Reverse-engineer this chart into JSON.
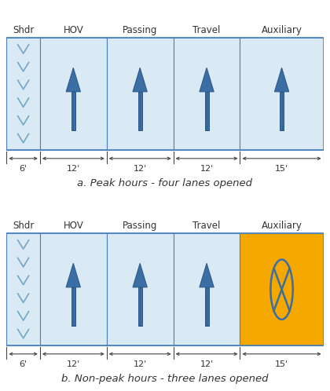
{
  "title_a": "a. Peak hours - four lanes opened",
  "title_b": "b. Non-peak hours - three lanes opened",
  "lane_labels": [
    "Shdr",
    "HOV",
    "Passing",
    "Travel",
    "Auxiliary"
  ],
  "lane_widths": [
    6,
    12,
    12,
    12,
    15
  ],
  "dim_labels": [
    "6'",
    "12'",
    "12'",
    "12'",
    "15'"
  ],
  "light_blue": "#daeaf4",
  "dark_blue": "#3a6ea5",
  "border_blue": "#4a80bb",
  "orange": "#f5a800",
  "white": "#ffffff",
  "shdr_chevron_color": "#7aaac8",
  "arrow_fill": "#3a6ea5",
  "arrow_edge": "#2a5585",
  "text_color": "#333333",
  "dim_arrow_color": "#444444",
  "font_size_label": 8.5,
  "font_size_dim": 8,
  "font_size_caption": 9.5
}
